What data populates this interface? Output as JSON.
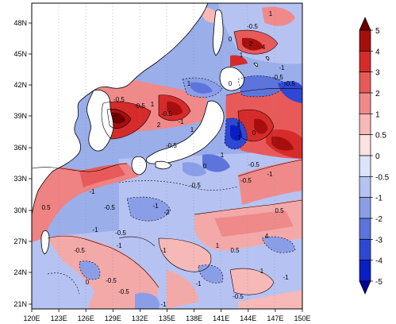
{
  "map": {
    "lat_ticks": [
      "48N",
      "45N",
      "42N",
      "39N",
      "36N",
      "33N",
      "30N",
      "27N",
      "24N",
      "21N"
    ],
    "lon_ticks": [
      "120E",
      "123E",
      "126E",
      "129E",
      "132E",
      "135E",
      "138E",
      "141E",
      "144E",
      "147E",
      "150E"
    ],
    "extent": {
      "lon": [
        120,
        150
      ],
      "lat": [
        20,
        50
      ]
    }
  },
  "colorbar": {
    "levels": [
      "5",
      "4",
      "3",
      "2",
      "1",
      "0.5",
      "0",
      "-0.5",
      "-1",
      "-2",
      "-3",
      "-4",
      "-5"
    ],
    "colors": [
      "#6a0000",
      "#a70f0f",
      "#d62b2b",
      "#e85a5a",
      "#f08a8a",
      "#f7b8b8",
      "#fbe2e2",
      "#dce3fa",
      "#b6c3f2",
      "#8a9ee8",
      "#5c74dc",
      "#2f48d3",
      "#0a1ec6",
      "#000099"
    ]
  },
  "contour_labels": [
    {
      "t": "1",
      "id": 0
    },
    {
      "t": "-0.5",
      "id": 1
    },
    {
      "t": "2",
      "id": 2
    },
    {
      "t": "4",
      "id": 3
    },
    {
      "t": "0",
      "id": 4
    },
    {
      "t": "-1",
      "id": 5
    },
    {
      "t": "1",
      "id": 6
    },
    {
      "t": "-0.5",
      "id": 7
    },
    {
      "t": "-0.5",
      "id": 8
    },
    {
      "t": "1",
      "id": 9
    },
    {
      "t": "0",
      "id": 10
    },
    {
      "t": "-0.5",
      "id": 11
    },
    {
      "t": "-0.5",
      "id": 12
    },
    {
      "t": "1",
      "id": 13
    },
    {
      "t": "-0.5",
      "id": 14
    },
    {
      "t": "-1",
      "id": 15
    },
    {
      "t": "2",
      "id": 16
    },
    {
      "t": "1",
      "id": 17
    },
    {
      "t": "-0.5",
      "id": 18
    },
    {
      "t": "1",
      "id": 19
    },
    {
      "t": "-1",
      "id": 20
    },
    {
      "t": "0",
      "id": 21
    },
    {
      "t": "1",
      "id": 22
    },
    {
      "t": "-0.5",
      "id": 23
    },
    {
      "t": "0",
      "id": 24
    },
    {
      "t": "-1",
      "id": 25
    },
    {
      "t": "-0.5",
      "id": 26
    },
    {
      "t": "-0.5",
      "id": 27
    },
    {
      "t": "-1",
      "id": 28
    },
    {
      "t": "0.5",
      "id": 29
    },
    {
      "t": "-0.5",
      "id": 30
    },
    {
      "t": "-1",
      "id": 31
    },
    {
      "t": "-2",
      "id": 32
    },
    {
      "t": "0.5",
      "id": 33
    },
    {
      "t": "-1",
      "id": 34
    },
    {
      "t": "-0.5",
      "id": 35
    },
    {
      "t": "-1",
      "id": 36
    },
    {
      "t": "4",
      "id": 37
    },
    {
      "t": "0.5",
      "id": 38
    },
    {
      "t": "-1",
      "id": 39
    },
    {
      "t": "1",
      "id": 40
    },
    {
      "t": "-0.5",
      "id": 41
    },
    {
      "t": "1",
      "id": 42
    },
    {
      "t": "-0.5",
      "id": 43
    },
    {
      "t": "-1",
      "id": 44
    },
    {
      "t": "0",
      "id": 45
    },
    {
      "t": "-0.5",
      "id": 46
    },
    {
      "t": "-1",
      "id": 47
    },
    {
      "t": "-0.5",
      "id": 48
    },
    {
      "t": "-1",
      "id": 49
    }
  ]
}
